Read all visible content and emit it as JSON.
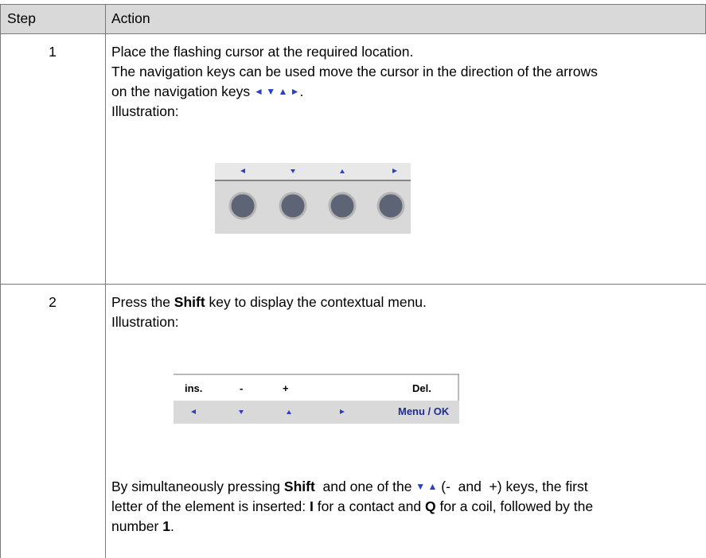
{
  "table": {
    "header": [
      "Step",
      "Action"
    ],
    "rows": [
      {
        "step": "1",
        "lines": [
          [
            {
              "text": "Place the flashing cursor at the required location."
            }
          ],
          [
            {
              "text": "The navigation keys can be used move the cursor in the direction of the arrows"
            }
          ],
          [
            {
              "text": "on the navigation keys "
            },
            {
              "text": "◄ ▼ ▲ ►",
              "color": "#2a3fc8"
            },
            {
              "text": "."
            }
          ],
          [
            {
              "text": "Illustration:"
            }
          ]
        ]
      },
      {
        "step": "2",
        "lines": [
          [
            {
              "text": "Press the "
            },
            {
              "text": "Shift",
              "bold": true
            },
            {
              "text": " key to display the contextual menu."
            }
          ],
          [
            {
              "text": "Illustration:"
            }
          ]
        ],
        "illustration": {
          "top": [
            "ins.",
            "-",
            "+",
            "Del."
          ],
          "bottom": "Menu / OK"
        },
        "note": [
          [
            {
              "text": "By simultaneously pressing "
            },
            {
              "text": "Shift",
              "bold": true
            },
            {
              "text": "  and one of the "
            },
            {
              "text": "▼ ▲",
              "color": "#2a3fc8"
            },
            {
              "text": " (-  and  +) keys, the first"
            }
          ],
          [
            {
              "text": "letter of the element is inserted: "
            },
            {
              "text": "I",
              "bold": true
            },
            {
              "text": " for a contact and "
            },
            {
              "text": "Q",
              "bold": true
            },
            {
              "text": " for a coil, followed by the"
            }
          ],
          [
            {
              "text": "number "
            },
            {
              "text": "1",
              "bold": true
            },
            {
              "text": "."
            }
          ]
        ]
      }
    ]
  }
}
